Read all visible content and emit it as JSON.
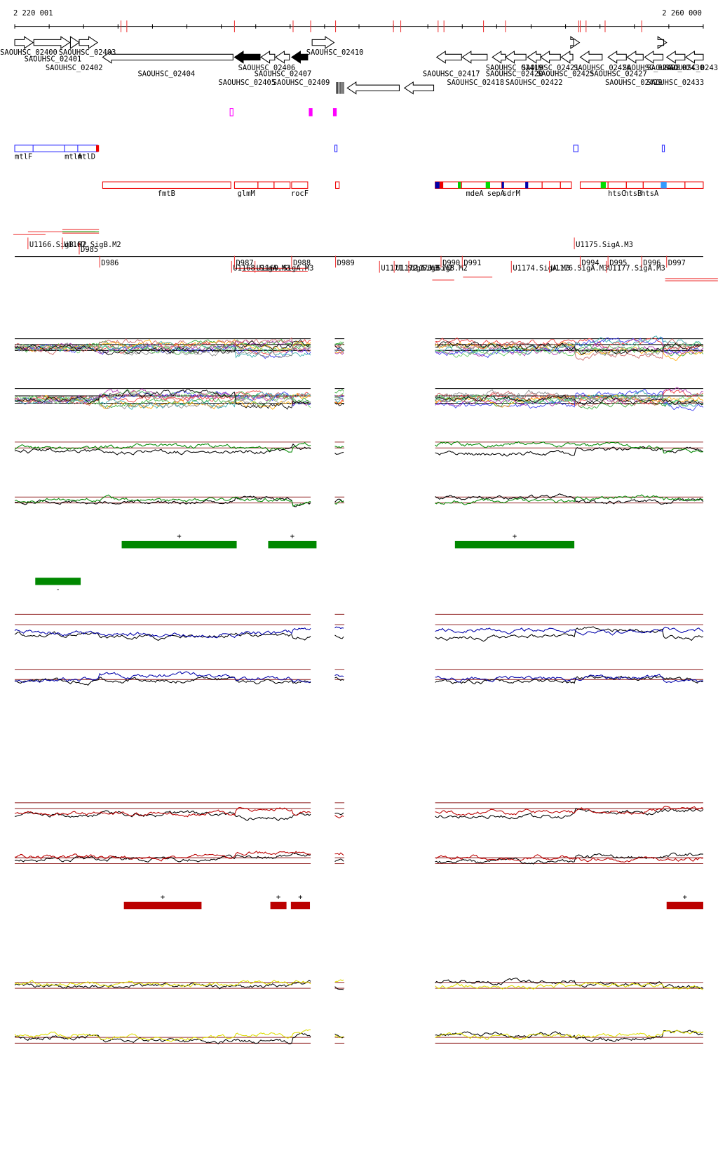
{
  "header": {
    "start": "2 220 001",
    "end": "2 260 000"
  },
  "genes": [
    "SAOUHSC_02400",
    "SAOUHSC_02401",
    "SAOUHSC_02403",
    "SAOUHSC_02402",
    "SAOUHSC_02404",
    "SAOUHSC_02406",
    "SAOUHSC_02407",
    "SAOUHSC_02405",
    "SAOUHSC_02409",
    "SAOUHSC_02410",
    "SAOUHSC_02417",
    "SAOUHSC_02419",
    "SAOUHSC_02421",
    "SAOUHSC_02418",
    "SAOUHSC_02420",
    "SAOUHSC_02422",
    "SAOUHSC_02425",
    "SAOUHSC_02426",
    "SAOUHSC_02427",
    "SAOUHSC_02428",
    "SAOUHSC_02429",
    "SAOUHSC_02430",
    "SAOUHSC_02433",
    "SAOUHSC_02434"
  ],
  "operons": [
    "mtlF",
    "mtlA",
    "mtlD",
    "fmtB",
    "glmM",
    "rocF",
    "mdeA",
    "sepA",
    "sdrM",
    "htsC",
    "htsB",
    "htsA"
  ],
  "promoters": [
    "U1166.SigB.M2",
    "U1167.SigB.M2",
    "D985",
    "D986",
    "U1175.SigA.M3",
    "D987",
    "U1168.SigA.M3",
    "U1169.SigA.M3",
    "D988",
    "D989",
    "U1171.SigA.M3",
    "U1172.SigB.M2",
    "U1173.SigB.M2",
    "D990",
    "D991",
    "U1174.SigA.M3",
    "U1176.SigA.M3",
    "D994",
    "D995",
    "U1177.SigA.M3",
    "D996",
    "D997"
  ],
  "segments": [
    {
      "label": "+"
    },
    {
      "label": "+"
    },
    {
      "label": "+"
    },
    {
      "label": "-"
    },
    {
      "label": "+"
    },
    {
      "label": "+"
    },
    {
      "label": "+"
    },
    {
      "label": "+"
    }
  ]
}
